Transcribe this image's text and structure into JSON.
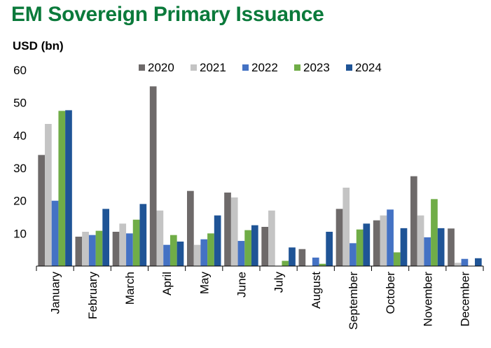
{
  "title": "EM Sovereign Primary Issuance",
  "unit_label": "USD (bn)",
  "colors": {
    "title": "#0b7a3b",
    "series": [
      "#6e6a6a",
      "#c4c4c4",
      "#4472c4",
      "#70ad47",
      "#1f5496"
    ]
  },
  "chart_data": {
    "type": "bar",
    "title": "EM Sovereign Primary Issuance",
    "ylabel": "USD (bn)",
    "xlabel": "",
    "ylim": [
      0,
      60
    ],
    "yticks": [
      10,
      20,
      30,
      40,
      50,
      60
    ],
    "grid": false,
    "legend_position": "top",
    "categories": [
      "January",
      "February",
      "March",
      "April",
      "May",
      "June",
      "July",
      "August",
      "September",
      "October",
      "November",
      "December"
    ],
    "series": [
      {
        "name": "2020",
        "values": [
          34,
          9,
          10.5,
          55,
          23,
          22.5,
          12,
          5.2,
          17.5,
          14,
          27.5,
          11.5
        ]
      },
      {
        "name": "2021",
        "values": [
          43.5,
          10.5,
          13,
          17,
          6.5,
          21,
          17,
          0,
          24,
          15.5,
          15.5,
          1
        ]
      },
      {
        "name": "2022",
        "values": [
          20,
          9.5,
          10,
          6.5,
          8.2,
          7.7,
          0,
          2.6,
          7,
          17.3,
          8.8,
          2.2
        ]
      },
      {
        "name": "2023",
        "values": [
          47.5,
          10.8,
          14.2,
          9.5,
          10,
          11,
          1.6,
          0.7,
          11.2,
          4.2,
          20.5,
          0
        ]
      },
      {
        "name": "2024",
        "values": [
          47.7,
          17.5,
          19,
          7.5,
          15.5,
          12.5,
          5.7,
          10.5,
          13,
          11.6,
          11.6,
          2.4
        ]
      }
    ]
  }
}
